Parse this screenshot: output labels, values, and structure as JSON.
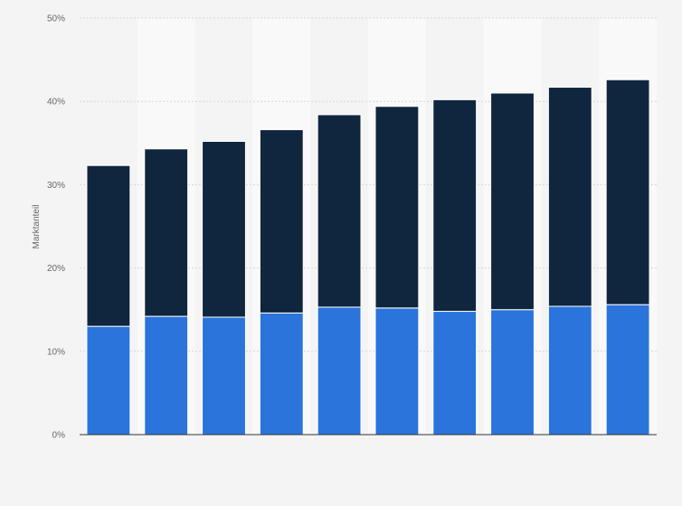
{
  "chart_data": {
    "type": "bar",
    "stacked": true,
    "title": "",
    "xlabel": "",
    "ylabel": "Marktanteil",
    "ylim": [
      0,
      50
    ],
    "y_tick_labels": [
      "0%",
      "10%",
      "20%",
      "30%",
      "40%",
      "50%"
    ],
    "y_ticks": [
      0,
      10,
      20,
      30,
      40,
      50
    ],
    "categories": [
      "",
      "",
      "",
      "",
      "",
      "",
      "",
      "",
      "",
      ""
    ],
    "series": [
      {
        "values": [
          13.0,
          14.2,
          14.1,
          14.6,
          15.3,
          15.2,
          14.8,
          15.0,
          15.4,
          15.6
        ],
        "color": "#2a74db"
      },
      {
        "values": [
          19.3,
          20.1,
          21.1,
          22.0,
          23.1,
          24.2,
          25.4,
          26.0,
          26.3,
          27.0
        ],
        "color": "#10263e"
      }
    ],
    "grid": true,
    "alternating_band_color": "#f9f9f9",
    "background_color": "#f4f4f4"
  }
}
